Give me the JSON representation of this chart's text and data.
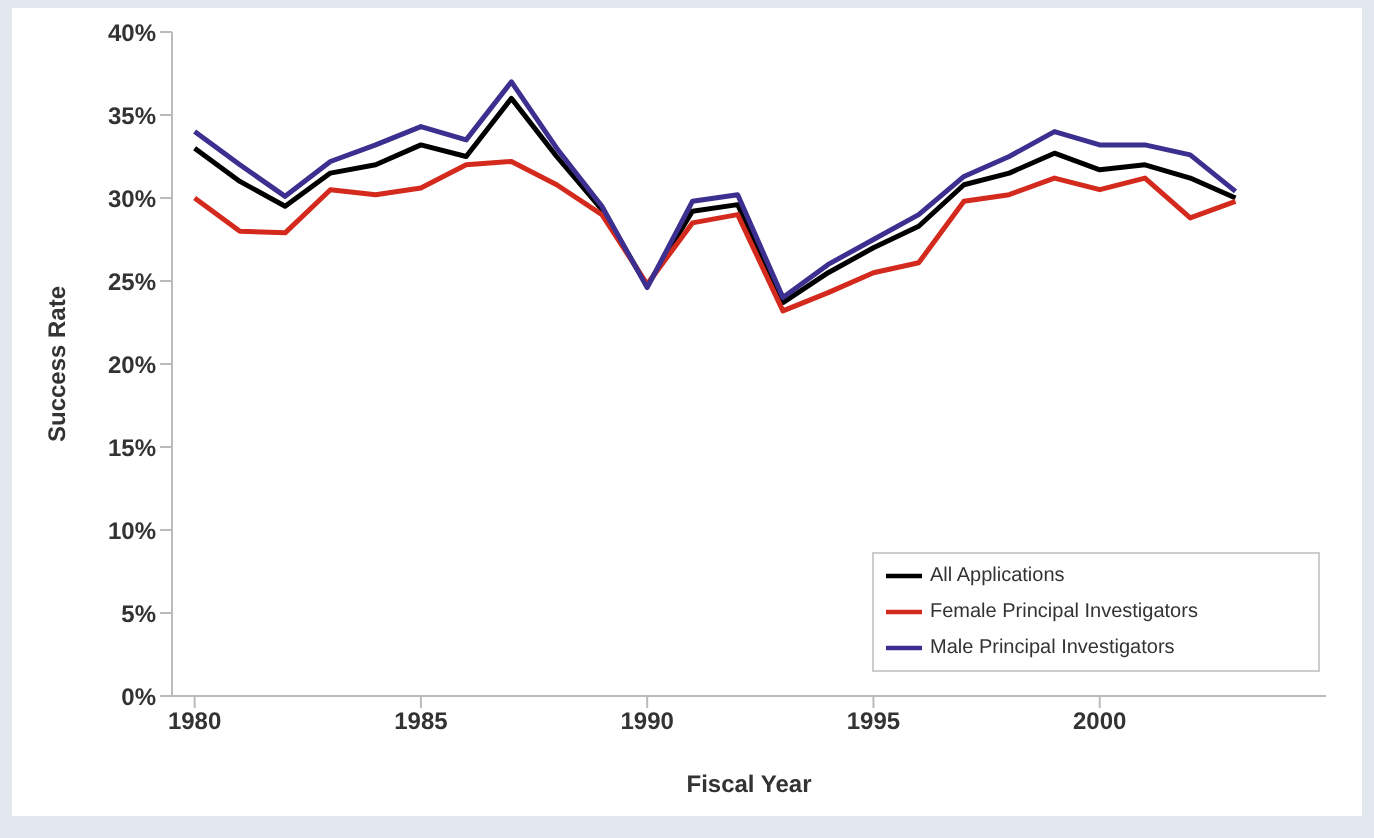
{
  "chart_data": {
    "type": "line",
    "xlabel": "Fiscal Year",
    "ylabel": "Success Rate",
    "x": [
      1980,
      1981,
      1982,
      1983,
      1984,
      1985,
      1986,
      1987,
      1988,
      1989,
      1990,
      1991,
      1992,
      1993,
      1994,
      1995,
      1996,
      1997,
      1998,
      1999,
      2000,
      2001,
      2002,
      2003
    ],
    "series": [
      {
        "name": "All Applications",
        "color": "#000000",
        "values": [
          33,
          31,
          29.5,
          31.5,
          32,
          33.2,
          32.5,
          36,
          32.5,
          29.3,
          24.7,
          29.2,
          29.6,
          23.7,
          25.5,
          27,
          28.3,
          30.8,
          31.5,
          32.7,
          31.7,
          32,
          31.2,
          30
        ]
      },
      {
        "name": "Female Principal Investigators",
        "color": "#d42a1e",
        "values": [
          30,
          28,
          27.9,
          30.5,
          30.2,
          30.6,
          32,
          32.2,
          30.8,
          29,
          24.8,
          28.5,
          29,
          23.2,
          24.3,
          25.5,
          26.1,
          29.8,
          30.2,
          31.2,
          30.5,
          31.2,
          28.8,
          29.8
        ]
      },
      {
        "name": "Male Principal Investigators",
        "color": "#3b2f8f",
        "values": [
          34,
          32,
          30.1,
          32.2,
          33.2,
          34.3,
          33.5,
          37,
          33,
          29.5,
          24.6,
          29.8,
          30.2,
          24,
          26,
          27.5,
          29,
          31.3,
          32.5,
          34,
          33.2,
          33.2,
          32.6,
          30.4
        ]
      }
    ],
    "xlim": [
      1979.5,
      2005
    ],
    "xticks": [
      1980,
      1985,
      1990,
      1995,
      2000
    ],
    "ylim": [
      0,
      40
    ],
    "yticks": [
      {
        "value": 0,
        "label": "0%"
      },
      {
        "value": 5,
        "label": "5%"
      },
      {
        "value": 10,
        "label": "10%"
      },
      {
        "value": 15,
        "label": "15%"
      },
      {
        "value": 20,
        "label": "20%"
      },
      {
        "value": 25,
        "label": "25%"
      },
      {
        "value": 30,
        "label": "30%"
      },
      {
        "value": 35,
        "label": "35%"
      },
      {
        "value": 40,
        "label": "40%"
      }
    ],
    "legend": "bottom right",
    "grid": false,
    "marker": "none",
    "line_style": "solid"
  }
}
